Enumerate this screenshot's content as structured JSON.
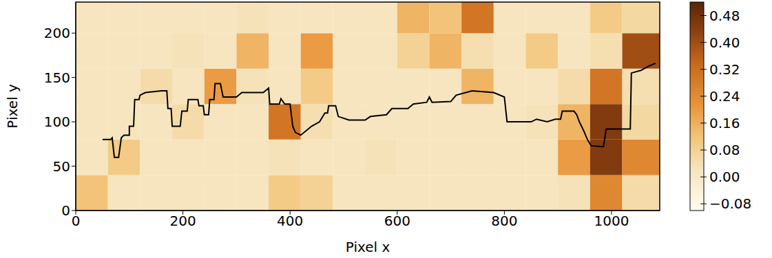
{
  "chart_data": {
    "type": "heatmap",
    "x_label": "Pixel x",
    "y_label": "Pixel y",
    "xlim": [
      0,
      1090
    ],
    "xticks": [
      0,
      200,
      400,
      600,
      800,
      1000
    ],
    "ylim": [
      0,
      235
    ],
    "yticks": [
      0,
      50,
      100,
      150,
      200
    ],
    "cell_x": [
      0,
      60,
      120,
      180,
      240,
      300,
      360,
      420,
      480,
      540,
      600,
      660,
      720,
      780,
      840,
      900,
      960,
      1020,
      1090
    ],
    "cell_y": [
      0,
      40,
      80,
      120,
      160,
      200,
      235
    ],
    "cells": [
      [
        0.12,
        0.02,
        0.02,
        0.02,
        0.02,
        0.02,
        0.1,
        0.08,
        0.02,
        0.02,
        0.02,
        0.02,
        0.02,
        0.02,
        0.02,
        0.03,
        0.25,
        0.05
      ],
      [
        0.02,
        0.1,
        0.02,
        0.02,
        0.02,
        0.02,
        0.03,
        0.02,
        0.02,
        0.03,
        0.02,
        0.02,
        0.02,
        0.02,
        0.02,
        0.2,
        0.45,
        0.25
      ],
      [
        0.02,
        0.02,
        0.02,
        0.05,
        0.02,
        0.02,
        0.3,
        0.04,
        0.02,
        0.02,
        0.02,
        0.02,
        0.02,
        0.02,
        0.03,
        0.15,
        0.45,
        0.06
      ],
      [
        0.02,
        0.02,
        0.05,
        0.02,
        0.2,
        0.03,
        0.02,
        0.1,
        0.02,
        0.02,
        0.02,
        0.02,
        0.15,
        0.02,
        0.02,
        0.05,
        0.3,
        0.04
      ],
      [
        0.02,
        0.02,
        0.02,
        0.03,
        0.02,
        0.15,
        0.02,
        0.2,
        0.02,
        0.02,
        0.08,
        0.15,
        0.04,
        0.02,
        0.1,
        0.02,
        0.04,
        0.4
      ],
      [
        0.02,
        0.02,
        0.02,
        0.02,
        0.02,
        0.03,
        0.02,
        0.02,
        0.02,
        0.02,
        0.15,
        0.12,
        0.3,
        0.02,
        0.02,
        0.02,
        0.1,
        0.06
      ]
    ],
    "colorbar": {
      "range": [
        -0.1,
        0.52
      ],
      "ticks": [
        {
          "value": -0.08,
          "label": "−0.08"
        },
        {
          "value": 0,
          "label": "0.00"
        },
        {
          "value": 0.08,
          "label": "0.08"
        },
        {
          "value": 0.16,
          "label": "0.16"
        },
        {
          "value": 0.24,
          "label": "0.24"
        },
        {
          "value": 0.32,
          "label": "0.32"
        },
        {
          "value": 0.4,
          "label": "0.40"
        },
        {
          "value": 0.48,
          "label": "0.48"
        }
      ]
    },
    "series": [
      {
        "type": "line",
        "color": "#000000",
        "x": [
          50,
          65,
          68,
          72,
          80,
          85,
          90,
          100,
          100,
          108,
          110,
          118,
          120,
          130,
          160,
          170,
          172,
          178,
          180,
          195,
          198,
          208,
          210,
          228,
          230,
          238,
          240,
          248,
          250,
          258,
          260,
          270,
          275,
          300,
          310,
          350,
          360,
          362,
          380,
          383,
          390,
          400,
          405,
          410,
          420,
          430,
          440,
          455,
          465,
          470,
          472,
          485,
          490,
          510,
          540,
          550,
          580,
          590,
          620,
          630,
          655,
          660,
          665,
          700,
          710,
          740,
          780,
          800,
          805,
          850,
          860,
          880,
          895,
          905,
          908,
          930,
          935,
          940,
          948,
          955,
          962,
          985,
          990,
          1035,
          1037,
          1055,
          1070,
          1082
        ],
        "values": [
          80,
          80,
          82,
          60,
          60,
          82,
          85,
          85,
          95,
          95,
          125,
          125,
          130,
          133,
          135,
          135,
          115,
          115,
          95,
          95,
          112,
          112,
          125,
          125,
          118,
          118,
          108,
          108,
          125,
          125,
          143,
          143,
          128,
          128,
          133,
          133,
          138,
          120,
          120,
          126,
          120,
          120,
          95,
          88,
          85,
          90,
          95,
          100,
          110,
          110,
          118,
          118,
          106,
          102,
          102,
          106,
          108,
          115,
          115,
          120,
          122,
          128,
          122,
          123,
          130,
          135,
          133,
          128,
          100,
          100,
          103,
          100,
          103,
          103,
          112,
          112,
          108,
          100,
          90,
          80,
          73,
          72,
          92,
          92,
          155,
          158,
          163,
          166
        ]
      }
    ]
  }
}
